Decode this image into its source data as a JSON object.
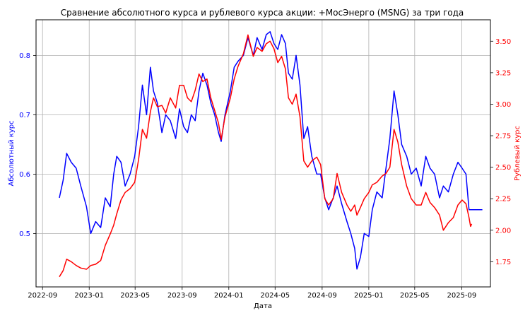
{
  "chart_data": {
    "type": "line",
    "title": "Сравнение абсолютного курса и рублевого курса акции: +МосЭнерго (MSNG) за три года",
    "xlabel": "Дата",
    "ylabel_left": "Абсолютный курс",
    "ylabel_right": "Рублевый курс",
    "grid": true,
    "x_ticks": [
      "2022-09",
      "2023-01",
      "2023-05",
      "2023-09",
      "2024-01",
      "2024-05",
      "2024-09",
      "2025-01",
      "2025-05",
      "2025-09"
    ],
    "y_left_ticks": [
      "0.5",
      "0.6",
      "0.7",
      "0.8"
    ],
    "y_right_ticks": [
      "1.75",
      "2.00",
      "2.25",
      "2.50",
      "2.75",
      "3.00",
      "3.25",
      "3.50"
    ],
    "xlim": [
      "2022-08-15",
      "2025-11-15"
    ],
    "ylim_left": [
      0.41,
      0.86
    ],
    "ylim_right": [
      1.55,
      3.67
    ],
    "colors": {
      "left_axis": "#0000ff",
      "right_axis": "#ff0000",
      "grid": "#b0b0b0"
    },
    "series": [
      {
        "axis": "left",
        "color": "#0000ff",
        "points": [
          [
            "2022-10-15",
            0.56
          ],
          [
            "2022-10-25",
            0.59
          ],
          [
            "2022-11-03",
            0.635
          ],
          [
            "2022-11-15",
            0.62
          ],
          [
            "2022-11-28",
            0.61
          ],
          [
            "2022-12-10",
            0.58
          ],
          [
            "2022-12-25",
            0.545
          ],
          [
            "2023-01-05",
            0.5
          ],
          [
            "2023-01-18",
            0.52
          ],
          [
            "2023-01-31",
            0.51
          ],
          [
            "2023-02-12",
            0.56
          ],
          [
            "2023-02-25",
            0.545
          ],
          [
            "2023-03-06",
            0.6
          ],
          [
            "2023-03-14",
            0.63
          ],
          [
            "2023-03-25",
            0.62
          ],
          [
            "2023-04-05",
            0.58
          ],
          [
            "2023-04-18",
            0.6
          ],
          [
            "2023-04-30",
            0.63
          ],
          [
            "2023-05-10",
            0.68
          ],
          [
            "2023-05-20",
            0.75
          ],
          [
            "2023-05-31",
            0.7
          ],
          [
            "2023-06-10",
            0.78
          ],
          [
            "2023-06-18",
            0.74
          ],
          [
            "2023-06-28",
            0.72
          ],
          [
            "2023-07-10",
            0.67
          ],
          [
            "2023-07-20",
            0.7
          ],
          [
            "2023-08-01",
            0.69
          ],
          [
            "2023-08-15",
            0.66
          ],
          [
            "2023-08-25",
            0.71
          ],
          [
            "2023-09-05",
            0.68
          ],
          [
            "2023-09-15",
            0.67
          ],
          [
            "2023-09-25",
            0.7
          ],
          [
            "2023-10-05",
            0.69
          ],
          [
            "2023-10-15",
            0.74
          ],
          [
            "2023-10-25",
            0.77
          ],
          [
            "2023-11-05",
            0.75
          ],
          [
            "2023-11-15",
            0.72
          ],
          [
            "2023-11-25",
            0.7
          ],
          [
            "2023-12-05",
            0.67
          ],
          [
            "2023-12-12",
            0.655
          ],
          [
            "2023-12-22",
            0.7
          ],
          [
            "2024-01-05",
            0.74
          ],
          [
            "2024-01-15",
            0.78
          ],
          [
            "2024-01-25",
            0.79
          ],
          [
            "2024-02-08",
            0.8
          ],
          [
            "2024-02-20",
            0.83
          ],
          [
            "2024-03-05",
            0.8
          ],
          [
            "2024-03-15",
            0.83
          ],
          [
            "2024-03-28",
            0.81
          ],
          [
            "2024-04-08",
            0.835
          ],
          [
            "2024-04-18",
            0.84
          ],
          [
            "2024-04-28",
            0.82
          ],
          [
            "2024-05-08",
            0.81
          ],
          [
            "2024-05-18",
            0.835
          ],
          [
            "2024-05-28",
            0.82
          ],
          [
            "2024-06-05",
            0.77
          ],
          [
            "2024-06-15",
            0.76
          ],
          [
            "2024-06-25",
            0.8
          ],
          [
            "2024-07-05",
            0.75
          ],
          [
            "2024-07-15",
            0.66
          ],
          [
            "2024-07-25",
            0.68
          ],
          [
            "2024-08-05",
            0.63
          ],
          [
            "2024-08-18",
            0.6
          ],
          [
            "2024-08-28",
            0.6
          ],
          [
            "2024-09-08",
            0.56
          ],
          [
            "2024-09-18",
            0.54
          ],
          [
            "2024-09-30",
            0.56
          ],
          [
            "2024-10-10",
            0.58
          ],
          [
            "2024-10-22",
            0.55
          ],
          [
            "2024-11-05",
            0.52
          ],
          [
            "2024-11-15",
            0.5
          ],
          [
            "2024-11-25",
            0.475
          ],
          [
            "2024-12-01",
            0.44
          ],
          [
            "2024-12-10",
            0.46
          ],
          [
            "2024-12-20",
            0.5
          ],
          [
            "2025-01-01",
            0.495
          ],
          [
            "2025-01-10",
            0.54
          ],
          [
            "2025-01-22",
            0.57
          ],
          [
            "2025-02-05",
            0.56
          ],
          [
            "2025-02-15",
            0.61
          ],
          [
            "2025-02-25",
            0.66
          ],
          [
            "2025-03-08",
            0.74
          ],
          [
            "2025-03-18",
            0.7
          ],
          [
            "2025-03-28",
            0.65
          ],
          [
            "2025-04-10",
            0.63
          ],
          [
            "2025-04-22",
            0.6
          ],
          [
            "2025-05-05",
            0.61
          ],
          [
            "2025-05-18",
            0.58
          ],
          [
            "2025-05-30",
            0.63
          ],
          [
            "2025-06-10",
            0.61
          ],
          [
            "2025-06-22",
            0.6
          ],
          [
            "2025-07-05",
            0.56
          ],
          [
            "2025-07-15",
            0.58
          ],
          [
            "2025-07-28",
            0.57
          ],
          [
            "2025-08-10",
            0.6
          ],
          [
            "2025-08-22",
            0.62
          ],
          [
            "2025-09-02",
            0.61
          ],
          [
            "2025-09-12",
            0.6
          ],
          [
            "2025-09-20",
            0.54
          ],
          [
            "2025-10-25",
            0.54
          ]
        ]
      },
      {
        "axis": "right",
        "color": "#ff0000",
        "points": [
          [
            "2022-10-15",
            1.63
          ],
          [
            "2022-10-25",
            1.68
          ],
          [
            "2022-11-03",
            1.77
          ],
          [
            "2022-11-15",
            1.75
          ],
          [
            "2022-11-28",
            1.72
          ],
          [
            "2022-12-10",
            1.7
          ],
          [
            "2022-12-25",
            1.69
          ],
          [
            "2023-01-05",
            1.72
          ],
          [
            "2023-01-18",
            1.73
          ],
          [
            "2023-01-31",
            1.76
          ],
          [
            "2023-02-12",
            1.88
          ],
          [
            "2023-02-25",
            1.97
          ],
          [
            "2023-03-06",
            2.04
          ],
          [
            "2023-03-14",
            2.13
          ],
          [
            "2023-03-25",
            2.24
          ],
          [
            "2023-04-05",
            2.3
          ],
          [
            "2023-04-18",
            2.33
          ],
          [
            "2023-04-30",
            2.38
          ],
          [
            "2023-05-10",
            2.56
          ],
          [
            "2023-05-20",
            2.8
          ],
          [
            "2023-05-31",
            2.73
          ],
          [
            "2023-06-10",
            2.94
          ],
          [
            "2023-06-18",
            3.05
          ],
          [
            "2023-06-28",
            2.98
          ],
          [
            "2023-07-10",
            2.99
          ],
          [
            "2023-07-20",
            2.93
          ],
          [
            "2023-08-01",
            3.05
          ],
          [
            "2023-08-15",
            2.97
          ],
          [
            "2023-08-25",
            3.15
          ],
          [
            "2023-09-05",
            3.15
          ],
          [
            "2023-09-15",
            3.05
          ],
          [
            "2023-09-25",
            3.02
          ],
          [
            "2023-10-05",
            3.11
          ],
          [
            "2023-10-15",
            3.24
          ],
          [
            "2023-10-25",
            3.18
          ],
          [
            "2023-11-05",
            3.2
          ],
          [
            "2023-11-15",
            3.05
          ],
          [
            "2023-11-25",
            2.95
          ],
          [
            "2023-12-05",
            2.85
          ],
          [
            "2023-12-12",
            2.72
          ],
          [
            "2023-12-22",
            2.9
          ],
          [
            "2024-01-05",
            3.05
          ],
          [
            "2024-01-15",
            3.2
          ],
          [
            "2024-01-25",
            3.3
          ],
          [
            "2024-02-08",
            3.4
          ],
          [
            "2024-02-20",
            3.55
          ],
          [
            "2024-03-05",
            3.38
          ],
          [
            "2024-03-15",
            3.45
          ],
          [
            "2024-03-28",
            3.42
          ],
          [
            "2024-04-08",
            3.48
          ],
          [
            "2024-04-18",
            3.5
          ],
          [
            "2024-04-28",
            3.44
          ],
          [
            "2024-05-08",
            3.33
          ],
          [
            "2024-05-18",
            3.38
          ],
          [
            "2024-05-28",
            3.28
          ],
          [
            "2024-06-05",
            3.05
          ],
          [
            "2024-06-15",
            3.0
          ],
          [
            "2024-06-25",
            3.08
          ],
          [
            "2024-07-05",
            2.9
          ],
          [
            "2024-07-15",
            2.55
          ],
          [
            "2024-07-25",
            2.5
          ],
          [
            "2024-08-05",
            2.55
          ],
          [
            "2024-08-18",
            2.58
          ],
          [
            "2024-08-28",
            2.52
          ],
          [
            "2024-09-08",
            2.25
          ],
          [
            "2024-09-18",
            2.2
          ],
          [
            "2024-09-30",
            2.25
          ],
          [
            "2024-10-10",
            2.45
          ],
          [
            "2024-10-22",
            2.3
          ],
          [
            "2024-11-05",
            2.2
          ],
          [
            "2024-11-15",
            2.15
          ],
          [
            "2024-11-25",
            2.2
          ],
          [
            "2024-12-01",
            2.12
          ],
          [
            "2024-12-10",
            2.18
          ],
          [
            "2024-12-20",
            2.25
          ],
          [
            "2025-01-01",
            2.3
          ],
          [
            "2025-01-10",
            2.36
          ],
          [
            "2025-01-22",
            2.38
          ],
          [
            "2025-02-05",
            2.43
          ],
          [
            "2025-02-15",
            2.45
          ],
          [
            "2025-02-25",
            2.5
          ],
          [
            "2025-03-08",
            2.8
          ],
          [
            "2025-03-18",
            2.7
          ],
          [
            "2025-03-28",
            2.52
          ],
          [
            "2025-04-10",
            2.35
          ],
          [
            "2025-04-22",
            2.25
          ],
          [
            "2025-05-05",
            2.2
          ],
          [
            "2025-05-18",
            2.2
          ],
          [
            "2025-05-30",
            2.3
          ],
          [
            "2025-06-10",
            2.22
          ],
          [
            "2025-06-22",
            2.18
          ],
          [
            "2025-07-05",
            2.12
          ],
          [
            "2025-07-15",
            2.0
          ],
          [
            "2025-07-28",
            2.06
          ],
          [
            "2025-08-10",
            2.1
          ],
          [
            "2025-08-22",
            2.2
          ],
          [
            "2025-09-02",
            2.24
          ],
          [
            "2025-09-12",
            2.21
          ],
          [
            "2025-09-20",
            2.1
          ],
          [
            "2025-09-24",
            2.03
          ],
          [
            "2025-09-27",
            2.05
          ]
        ]
      }
    ]
  }
}
